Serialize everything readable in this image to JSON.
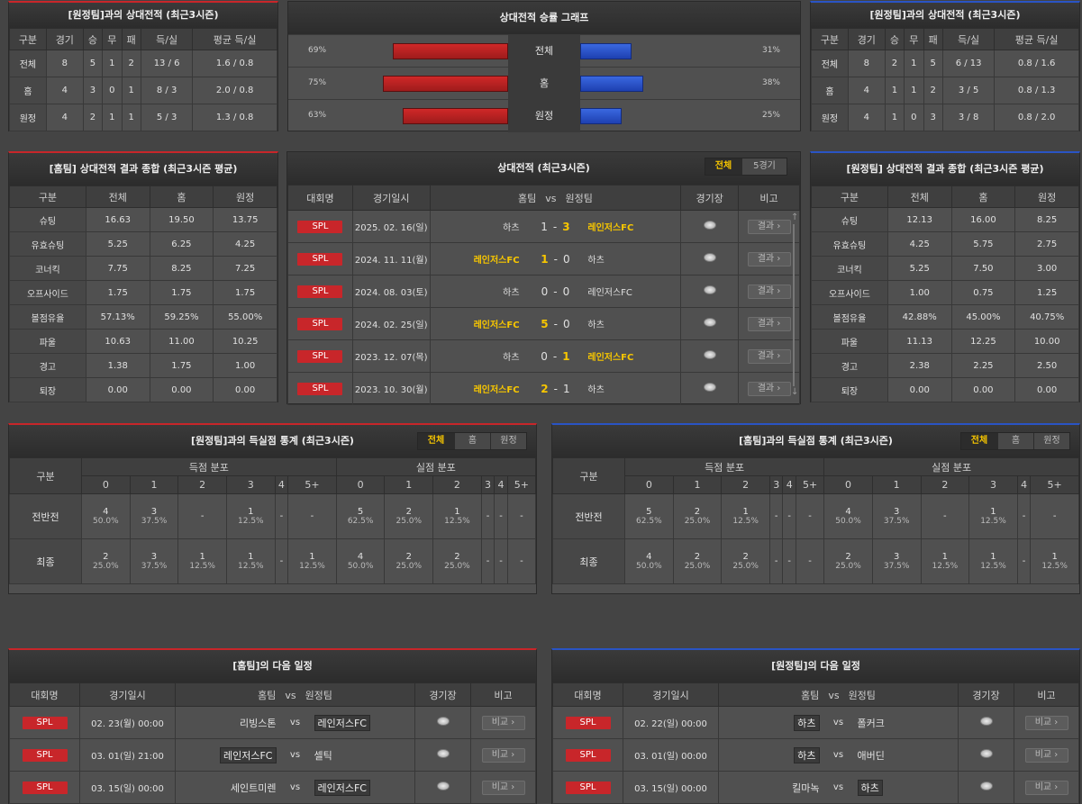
{
  "h2h_away": {
    "title": "[원정팀]과의 상대전적 (최근3시즌)",
    "headers": [
      "구분",
      "경기",
      "승",
      "무",
      "패",
      "득/실",
      "평균 득/실"
    ],
    "rows": [
      [
        "전체",
        "8",
        "5",
        "1",
        "2",
        "13 / 6",
        "1.6 / 0.8"
      ],
      [
        "홈",
        "4",
        "3",
        "0",
        "1",
        "8 / 3",
        "2.0 / 0.8"
      ],
      [
        "원정",
        "4",
        "2",
        "1",
        "1",
        "5 / 3",
        "1.3 / 0.8"
      ]
    ]
  },
  "winrate": {
    "title": "상대전적 승률 그래프",
    "rows": [
      {
        "label": "전체",
        "home_pct": "69%",
        "away_pct": "31%",
        "home": 69,
        "away": 31
      },
      {
        "label": "홈",
        "home_pct": "75%",
        "away_pct": "38%",
        "home": 75,
        "away": 38
      },
      {
        "label": "원정",
        "home_pct": "63%",
        "away_pct": "25%",
        "home": 63,
        "away": 25
      }
    ]
  },
  "h2h_home": {
    "title": "[원정팀]과의 상대전적 (최근3시즌)",
    "headers": [
      "구분",
      "경기",
      "승",
      "무",
      "패",
      "득/실",
      "평균 득/실"
    ],
    "rows": [
      [
        "전체",
        "8",
        "2",
        "1",
        "5",
        "6 / 13",
        "0.8 / 1.6"
      ],
      [
        "홈",
        "4",
        "1",
        "1",
        "2",
        "3 / 5",
        "0.8 / 1.3"
      ],
      [
        "원정",
        "4",
        "1",
        "0",
        "3",
        "3 / 8",
        "0.8 / 2.0"
      ]
    ]
  },
  "summary_home": {
    "title": "[홈팀] 상대전적 결과 종합 (최근3시즌 평균)",
    "headers": [
      "구분",
      "전체",
      "홈",
      "원정"
    ],
    "rows": [
      [
        "슈팅",
        "16.63",
        "19.50",
        "13.75"
      ],
      [
        "유효슈팅",
        "5.25",
        "6.25",
        "4.25"
      ],
      [
        "코너킥",
        "7.75",
        "8.25",
        "7.25"
      ],
      [
        "오프사이드",
        "1.75",
        "1.75",
        "1.75"
      ],
      [
        "볼점유율",
        "57.13%",
        "59.25%",
        "55.00%"
      ],
      [
        "파울",
        "10.63",
        "11.00",
        "10.25"
      ],
      [
        "경고",
        "1.38",
        "1.75",
        "1.00"
      ],
      [
        "퇴장",
        "0.00",
        "0.00",
        "0.00"
      ]
    ]
  },
  "matches": {
    "title": "상대전적 (최근3시즌)",
    "tabs": [
      "전체",
      "5경기"
    ],
    "headers": {
      "league": "대회명",
      "date": "경기일시",
      "home": "홈팀",
      "vs": "vs",
      "away": "원정팀",
      "venue": "경기장",
      "note": "비고"
    },
    "dash": "-",
    "rows": [
      {
        "league": "SPL",
        "date": "2025. 02. 16(일)",
        "home": "하츠",
        "hs": "1",
        "as": "3",
        "away": "레인저스FC",
        "win": "away",
        "btn": "결과 ›"
      },
      {
        "league": "SPL",
        "date": "2024. 11. 11(월)",
        "home": "레인저스FC",
        "hs": "1",
        "as": "0",
        "away": "하츠",
        "win": "home",
        "btn": "결과 ›"
      },
      {
        "league": "SPL",
        "date": "2024. 08. 03(토)",
        "home": "하츠",
        "hs": "0",
        "as": "0",
        "away": "레인저스FC",
        "win": "none",
        "btn": "결과 ›"
      },
      {
        "league": "SPL",
        "date": "2024. 02. 25(일)",
        "home": "레인저스FC",
        "hs": "5",
        "as": "0",
        "away": "하츠",
        "win": "home",
        "btn": "결과 ›"
      },
      {
        "league": "SPL",
        "date": "2023. 12. 07(목)",
        "home": "하츠",
        "hs": "0",
        "as": "1",
        "away": "레인저스FC",
        "win": "away",
        "btn": "결과 ›"
      },
      {
        "league": "SPL",
        "date": "2023. 10. 30(월)",
        "home": "레인저스FC",
        "hs": "2",
        "as": "1",
        "away": "하츠",
        "win": "home",
        "btn": "결과 ›"
      }
    ]
  },
  "summary_away": {
    "title": "[원정팀] 상대전적 결과 종합 (최근3시즌 평균)",
    "headers": [
      "구분",
      "전체",
      "홈",
      "원정"
    ],
    "rows": [
      [
        "슈팅",
        "12.13",
        "16.00",
        "8.25"
      ],
      [
        "유효슈팅",
        "4.25",
        "5.75",
        "2.75"
      ],
      [
        "코너킥",
        "5.25",
        "7.50",
        "3.00"
      ],
      [
        "오프사이드",
        "1.00",
        "0.75",
        "1.25"
      ],
      [
        "볼점유율",
        "42.88%",
        "45.00%",
        "40.75%"
      ],
      [
        "파울",
        "11.13",
        "12.25",
        "10.00"
      ],
      [
        "경고",
        "2.38",
        "2.25",
        "2.50"
      ],
      [
        "퇴장",
        "0.00",
        "0.00",
        "0.00"
      ]
    ]
  },
  "goals_left": {
    "title": "[원정팀]과의 득실점 통계 (최근3시즌)",
    "tabs": [
      "전체",
      "홈",
      "원정"
    ],
    "col_label": "구분",
    "scored_label": "득점 분포",
    "conceded_label": "실점 분포",
    "buckets": [
      "0",
      "1",
      "2",
      "3",
      "4",
      "5+"
    ],
    "rows": [
      {
        "label": "전반전",
        "cells": [
          [
            "4",
            "50.0%"
          ],
          [
            "3",
            "37.5%"
          ],
          [
            "-",
            ""
          ],
          [
            "1",
            "12.5%"
          ],
          [
            "-",
            ""
          ],
          [
            "-",
            ""
          ],
          [
            "5",
            "62.5%"
          ],
          [
            "2",
            "25.0%"
          ],
          [
            "1",
            "12.5%"
          ],
          [
            "-",
            ""
          ],
          [
            "-",
            ""
          ],
          [
            "-",
            ""
          ]
        ]
      },
      {
        "label": "최종",
        "cells": [
          [
            "2",
            "25.0%"
          ],
          [
            "3",
            "37.5%"
          ],
          [
            "1",
            "12.5%"
          ],
          [
            "1",
            "12.5%"
          ],
          [
            "-",
            ""
          ],
          [
            "1",
            "12.5%"
          ],
          [
            "4",
            "50.0%"
          ],
          [
            "2",
            "25.0%"
          ],
          [
            "2",
            "25.0%"
          ],
          [
            "-",
            ""
          ],
          [
            "-",
            ""
          ],
          [
            "-",
            ""
          ]
        ]
      }
    ]
  },
  "goals_right": {
    "title": "[홈팀]과의 득실점 통계 (최근3시즌)",
    "tabs": [
      "전체",
      "홈",
      "원정"
    ],
    "col_label": "구분",
    "scored_label": "득점 분포",
    "conceded_label": "실점 분포",
    "buckets": [
      "0",
      "1",
      "2",
      "3",
      "4",
      "5+"
    ],
    "rows": [
      {
        "label": "전반전",
        "cells": [
          [
            "5",
            "62.5%"
          ],
          [
            "2",
            "25.0%"
          ],
          [
            "1",
            "12.5%"
          ],
          [
            "-",
            ""
          ],
          [
            "-",
            ""
          ],
          [
            "-",
            ""
          ],
          [
            "4",
            "50.0%"
          ],
          [
            "3",
            "37.5%"
          ],
          [
            "-",
            ""
          ],
          [
            "1",
            "12.5%"
          ],
          [
            "-",
            ""
          ],
          [
            "-",
            ""
          ]
        ]
      },
      {
        "label": "최종",
        "cells": [
          [
            "4",
            "50.0%"
          ],
          [
            "2",
            "25.0%"
          ],
          [
            "2",
            "25.0%"
          ],
          [
            "-",
            ""
          ],
          [
            "-",
            ""
          ],
          [
            "-",
            ""
          ],
          [
            "2",
            "25.0%"
          ],
          [
            "3",
            "37.5%"
          ],
          [
            "1",
            "12.5%"
          ],
          [
            "1",
            "12.5%"
          ],
          [
            "-",
            ""
          ],
          [
            "1",
            "12.5%"
          ]
        ]
      }
    ]
  },
  "next_home": {
    "title": "[홈팀]의 다음 일정",
    "headers": {
      "league": "대회명",
      "date": "경기일시",
      "home": "홈팀",
      "vs": "vs",
      "away": "원정팀",
      "venue": "경기장",
      "note": "비고"
    },
    "rows": [
      {
        "league": "SPL",
        "date": "02. 23(월) 00:00",
        "home": "리빙스톤",
        "away": "레인저스FC",
        "hl": "away",
        "btn": "비교 ›"
      },
      {
        "league": "SPL",
        "date": "03. 01(일) 21:00",
        "home": "레인저스FC",
        "away": "셀틱",
        "hl": "home",
        "btn": "비교 ›"
      },
      {
        "league": "SPL",
        "date": "03. 15(일) 00:00",
        "home": "세인트미렌",
        "away": "레인저스FC",
        "hl": "away",
        "btn": "비교 ›"
      }
    ]
  },
  "next_away": {
    "title": "[원정팀]의 다음 일정",
    "headers": {
      "league": "대회명",
      "date": "경기일시",
      "home": "홈팀",
      "vs": "vs",
      "away": "원정팀",
      "venue": "경기장",
      "note": "비고"
    },
    "rows": [
      {
        "league": "SPL",
        "date": "02. 22(일) 00:00",
        "home": "하츠",
        "away": "폴커크",
        "hl": "home",
        "btn": "비교 ›"
      },
      {
        "league": "SPL",
        "date": "03. 01(일) 00:00",
        "home": "하츠",
        "away": "애버딘",
        "hl": "home",
        "btn": "비교 ›"
      },
      {
        "league": "SPL",
        "date": "03. 15(일) 00:00",
        "home": "킬마녹",
        "away": "하츠",
        "hl": "away",
        "btn": "비교 ›"
      }
    ]
  }
}
